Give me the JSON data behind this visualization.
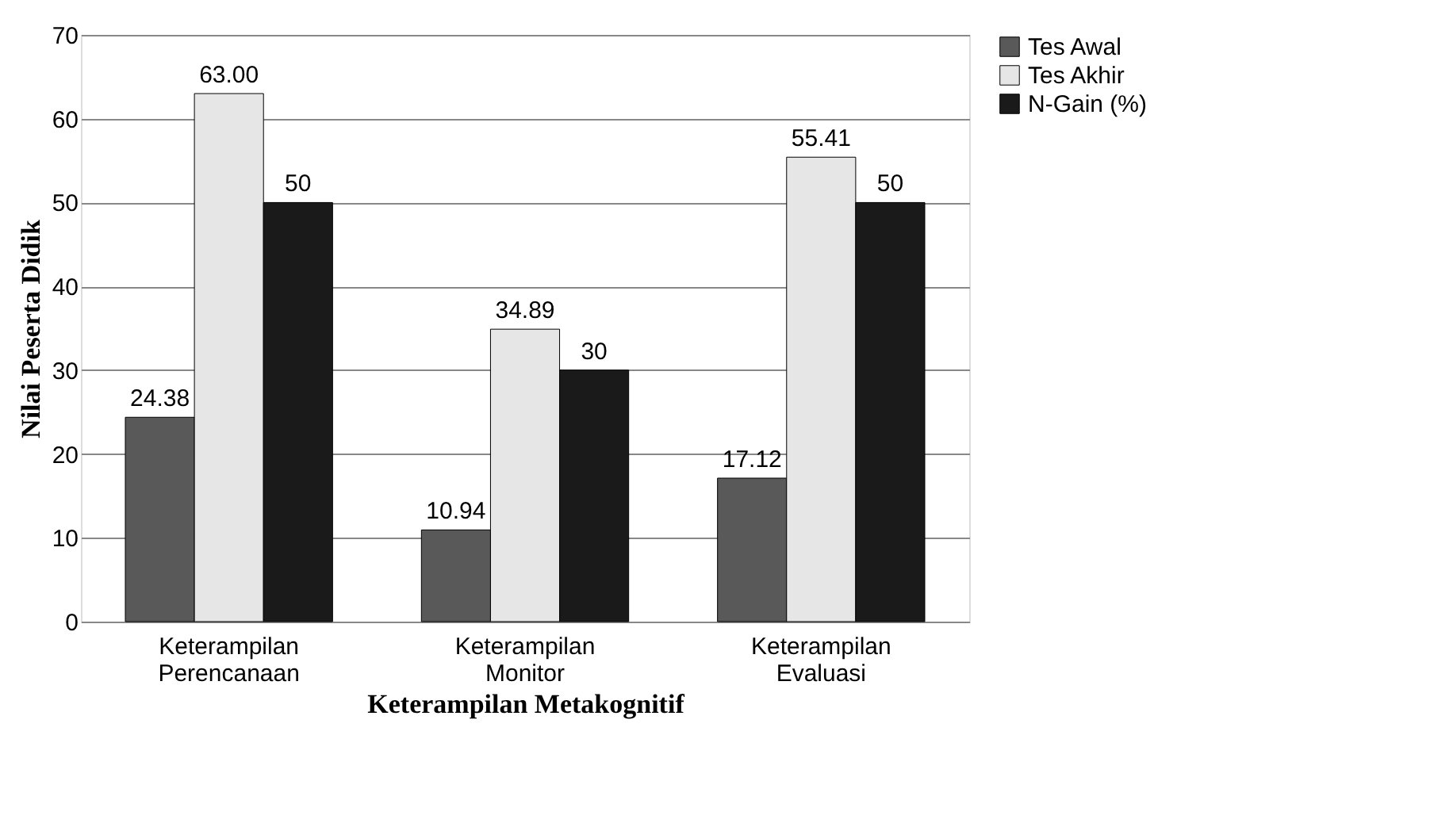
{
  "chart_data": {
    "type": "bar",
    "xlabel": "Keterampilan Metakognitif",
    "ylabel": "Nilai Peserta Didik",
    "categories": [
      "Keterampilan Perencanaan",
      "Keterampilan Monitor",
      "Keterampilan Evaluasi"
    ],
    "series": [
      {
        "name": "Tes Awal",
        "color": "#595959",
        "values": [
          24.38,
          10.94,
          17.12
        ],
        "value_labels": [
          "24.38",
          "10.94",
          "17.12"
        ]
      },
      {
        "name": "Tes Akhir",
        "color": "#e6e6e6",
        "values": [
          63.0,
          34.89,
          55.41
        ],
        "value_labels": [
          "63.00",
          "34.89",
          "55.41"
        ]
      },
      {
        "name": "N-Gain (%)",
        "color": "#1a1a1a",
        "values": [
          50,
          30,
          50
        ],
        "value_labels": [
          "50",
          "30",
          "50"
        ]
      }
    ],
    "ylim": [
      0,
      70
    ],
    "yticks": [
      0,
      10,
      20,
      30,
      40,
      50,
      60,
      70
    ],
    "grid": "y",
    "legend": "right"
  }
}
